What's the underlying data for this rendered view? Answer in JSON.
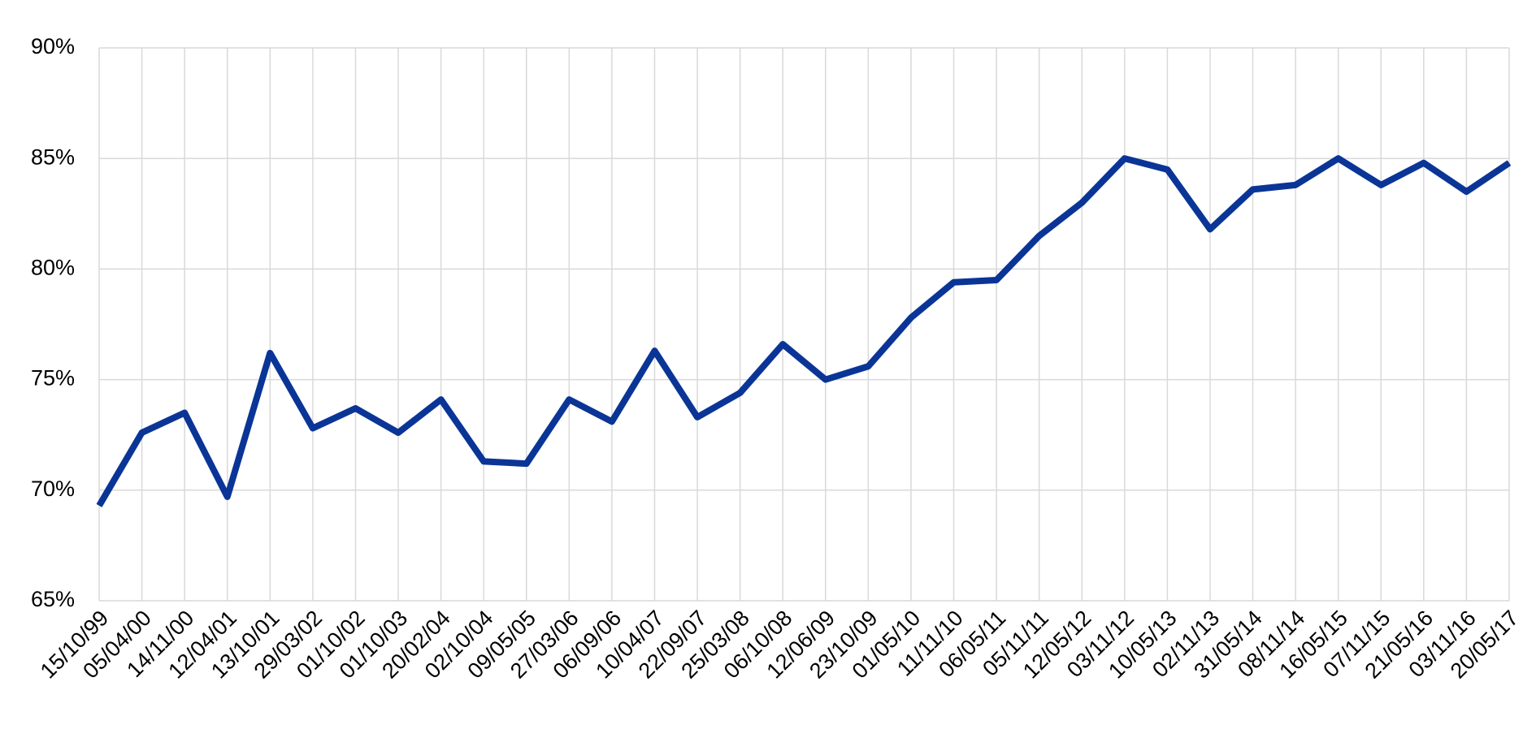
{
  "chart_data": {
    "type": "line",
    "categories": [
      "15/10/99",
      "05/04/00",
      "14/11/00",
      "12/04/01",
      "13/10/01",
      "29/03/02",
      "01/10/02",
      "01/10/03",
      "20/02/04",
      "02/10/04",
      "09/05/05",
      "27/03/06",
      "06/09/06",
      "10/04/07",
      "22/09/07",
      "25/03/08",
      "06/10/08",
      "12/06/09",
      "23/10/09",
      "01/05/10",
      "11/11/10",
      "06/05/11",
      "05/11/11",
      "12/05/12",
      "03/11/12",
      "10/05/13",
      "02/11/13",
      "31/05/14",
      "08/11/14",
      "16/05/15",
      "07/11/15",
      "21/05/16",
      "03/11/16",
      "20/05/17"
    ],
    "values": [
      69.3,
      72.6,
      73.5,
      69.7,
      76.2,
      72.8,
      73.7,
      72.6,
      74.1,
      71.3,
      71.2,
      74.1,
      73.1,
      76.3,
      73.3,
      74.4,
      76.6,
      75.0,
      75.6,
      77.8,
      79.4,
      79.5,
      81.5,
      83.0,
      85.0,
      84.5,
      81.8,
      83.6,
      83.8,
      85.0,
      83.8,
      84.8,
      83.5,
      84.8
    ],
    "color": "#0a3597",
    "ylim": [
      65,
      90
    ],
    "yticks": [
      {
        "value": 65,
        "label": "65%"
      },
      {
        "value": 70,
        "label": "70%"
      },
      {
        "value": 75,
        "label": "75%"
      },
      {
        "value": 80,
        "label": "80%"
      },
      {
        "value": 85,
        "label": "85%"
      },
      {
        "value": 90,
        "label": "90%"
      }
    ],
    "grid": true
  }
}
